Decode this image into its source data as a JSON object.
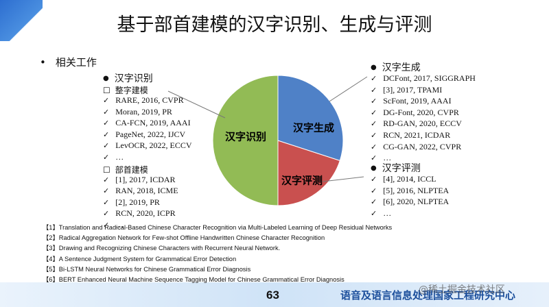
{
  "title": "基于部首建模的汉字识别、生成与评测",
  "section": "相关工作",
  "chart_data": {
    "type": "pie",
    "categories": [
      "汉字生成",
      "汉字评测",
      "汉字识别"
    ],
    "values": [
      30,
      20,
      50
    ],
    "colors": [
      "#4f81c7",
      "#c9504f",
      "#92bb55"
    ]
  },
  "recognition": {
    "heading": "汉字识别",
    "groups": [
      {
        "heading": "整字建模",
        "items": [
          "RARE, 2016, CVPR",
          "Moran, 2019, PR",
          "CA-FCN, 2019, AAAI",
          "PageNet, 2022, IJCV",
          "LevOCR, 2022, ECCV",
          "…"
        ]
      },
      {
        "heading": "部首建模",
        "items": [
          "[1], 2017, ICDAR",
          "RAN, 2018, ICME",
          "[2], 2019, PR",
          "RCN, 2020, ICPR",
          "…"
        ]
      }
    ]
  },
  "generation": {
    "heading": "汉字生成",
    "items": [
      "DCFont, 2017, SIGGRAPH",
      "[3], 2017, TPAMI",
      "ScFont, 2019, AAAI",
      "DG-Font, 2020, CVPR",
      "RD-GAN, 2020, ECCV",
      "RCN, 2021, ICDAR",
      "CG-GAN, 2022, CVPR",
      "…"
    ]
  },
  "evaluation": {
    "heading": "汉字评测",
    "items": [
      "[4], 2014, ICCL",
      "[5], 2016, NLPTEA",
      "[6], 2020, NLPTEA",
      "…"
    ]
  },
  "references": [
    "【1】Translation and Radical-Based Chinese Character Recognition via Multi-Labeled Learning of Deep Residual Networks",
    "【2】Radical Aggregation Network for Few-shot Offline Handwritten Chinese Character Recognition",
    "【3】Drawing and Recognizing Chinese Characters with Recurrent Neural Network.",
    "【4】A Sentence Judgment System for Grammatical Error Detection",
    "【5】Bi-LSTM Neural Networks for Chinese Grammatical Error Diagnosis",
    "【6】BERT Enhanced Neural Machine  Sequence Tagging Model for Chinese Grammatical Error Diagnosis"
  ],
  "footer": {
    "page": "63",
    "org": "语音及语言信息处理国家工程研究中心",
    "watermark": "@稀土掘金技术社区"
  }
}
